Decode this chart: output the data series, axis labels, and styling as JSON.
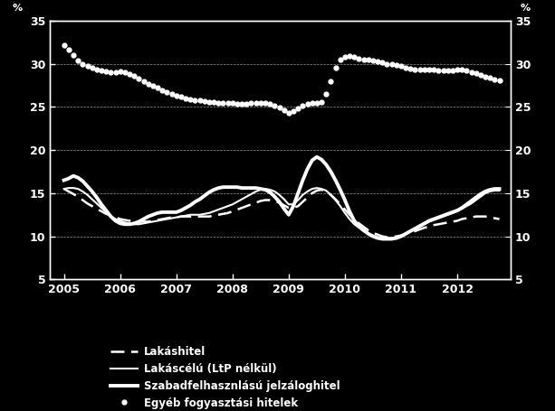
{
  "title": "",
  "ylabel_left": "%",
  "ylabel_right": "%",
  "ylim": [
    5,
    35
  ],
  "yticks": [
    5,
    10,
    15,
    20,
    25,
    30,
    35
  ],
  "xlim_start": 2004.75,
  "xlim_end": 2012.95,
  "xtick_years": [
    2005,
    2006,
    2007,
    2008,
    2009,
    2010,
    2011,
    2012
  ],
  "background_color": "#000000",
  "text_color": "#ffffff",
  "grid_color": "#888888",
  "legend_entries": [
    "Lakáshitel",
    "Lakáscélú (LtP nélkül)",
    "Szabadfelhasznlású jelzáloghitel",
    "Egyéb fogyasztási hitelek"
  ],
  "series": {
    "lakashitel": {
      "color": "#ffffff",
      "linestyle": "dashed",
      "linewidth": 1.8,
      "data_x": [
        2005.0,
        2005.083,
        2005.167,
        2005.25,
        2005.333,
        2005.417,
        2005.5,
        2005.583,
        2005.667,
        2005.75,
        2005.833,
        2005.917,
        2006.0,
        2006.083,
        2006.167,
        2006.25,
        2006.333,
        2006.417,
        2006.5,
        2006.583,
        2006.667,
        2006.75,
        2006.833,
        2006.917,
        2007.0,
        2007.083,
        2007.167,
        2007.25,
        2007.333,
        2007.417,
        2007.5,
        2007.583,
        2007.667,
        2007.75,
        2007.833,
        2007.917,
        2008.0,
        2008.083,
        2008.167,
        2008.25,
        2008.333,
        2008.417,
        2008.5,
        2008.583,
        2008.667,
        2008.75,
        2008.833,
        2008.917,
        2009.0,
        2009.083,
        2009.167,
        2009.25,
        2009.333,
        2009.417,
        2009.5,
        2009.583,
        2009.667,
        2009.75,
        2009.833,
        2009.917,
        2010.0,
        2010.083,
        2010.167,
        2010.25,
        2010.333,
        2010.417,
        2010.5,
        2010.583,
        2010.667,
        2010.75,
        2010.833,
        2010.917,
        2011.0,
        2011.083,
        2011.167,
        2011.25,
        2011.333,
        2011.417,
        2011.5,
        2011.583,
        2011.667,
        2011.75,
        2011.833,
        2011.917,
        2012.0,
        2012.083,
        2012.167,
        2012.25,
        2012.333,
        2012.417,
        2012.5,
        2012.583,
        2012.667,
        2012.75
      ],
      "data_y": [
        15.5,
        15.2,
        14.9,
        14.6,
        14.2,
        13.8,
        13.5,
        13.2,
        12.9,
        12.6,
        12.4,
        12.2,
        12.0,
        11.9,
        11.8,
        11.7,
        11.7,
        11.7,
        11.7,
        11.8,
        11.9,
        12.0,
        12.1,
        12.2,
        12.2,
        12.3,
        12.3,
        12.3,
        12.3,
        12.3,
        12.3,
        12.3,
        12.4,
        12.5,
        12.6,
        12.7,
        12.9,
        13.1,
        13.3,
        13.5,
        13.7,
        13.9,
        14.1,
        14.2,
        14.2,
        14.1,
        13.9,
        13.6,
        13.3,
        13.3,
        13.5,
        14.0,
        14.5,
        15.0,
        15.3,
        15.4,
        15.2,
        14.8,
        14.3,
        13.7,
        13.1,
        12.5,
        12.0,
        11.5,
        11.1,
        10.7,
        10.4,
        10.2,
        10.0,
        9.9,
        9.9,
        10.0,
        10.1,
        10.3,
        10.5,
        10.6,
        10.8,
        11.0,
        11.1,
        11.3,
        11.4,
        11.5,
        11.6,
        11.7,
        11.8,
        12.0,
        12.1,
        12.2,
        12.3,
        12.3,
        12.3,
        12.2,
        12.1,
        12.0
      ]
    },
    "lakascelú": {
      "color": "#ffffff",
      "linestyle": "solid",
      "linewidth": 1.5,
      "data_x": [
        2005.0,
        2005.083,
        2005.167,
        2005.25,
        2005.333,
        2005.417,
        2005.5,
        2005.583,
        2005.667,
        2005.75,
        2005.833,
        2005.917,
        2006.0,
        2006.083,
        2006.167,
        2006.25,
        2006.333,
        2006.417,
        2006.5,
        2006.583,
        2006.667,
        2006.75,
        2006.833,
        2006.917,
        2007.0,
        2007.083,
        2007.167,
        2007.25,
        2007.333,
        2007.417,
        2007.5,
        2007.583,
        2007.667,
        2007.75,
        2007.833,
        2007.917,
        2008.0,
        2008.083,
        2008.167,
        2008.25,
        2008.333,
        2008.417,
        2008.5,
        2008.583,
        2008.667,
        2008.75,
        2008.833,
        2008.917,
        2009.0,
        2009.083,
        2009.167,
        2009.25,
        2009.333,
        2009.417,
        2009.5,
        2009.583,
        2009.667,
        2009.75,
        2009.833,
        2009.917,
        2010.0,
        2010.083,
        2010.167,
        2010.25,
        2010.333,
        2010.417,
        2010.5,
        2010.583,
        2010.667,
        2010.75,
        2010.833,
        2010.917,
        2011.0,
        2011.083,
        2011.167,
        2011.25,
        2011.333,
        2011.417,
        2011.5,
        2011.583,
        2011.667,
        2011.75,
        2011.833,
        2011.917,
        2012.0,
        2012.083,
        2012.167,
        2012.25,
        2012.333,
        2012.417,
        2012.5,
        2012.583,
        2012.667,
        2012.75
      ],
      "data_y": [
        15.5,
        15.6,
        15.6,
        15.5,
        15.2,
        14.8,
        14.3,
        13.8,
        13.3,
        12.8,
        12.3,
        12.0,
        11.8,
        11.6,
        11.5,
        11.4,
        11.4,
        11.5,
        11.6,
        11.7,
        11.8,
        11.9,
        12.0,
        12.1,
        12.2,
        12.3,
        12.4,
        12.5,
        12.5,
        12.5,
        12.6,
        12.7,
        12.9,
        13.1,
        13.3,
        13.5,
        13.7,
        14.0,
        14.3,
        14.6,
        14.9,
        15.2,
        15.4,
        15.5,
        15.4,
        15.2,
        14.8,
        14.3,
        13.7,
        13.7,
        14.2,
        14.8,
        15.2,
        15.5,
        15.6,
        15.5,
        15.3,
        14.8,
        14.2,
        13.5,
        12.7,
        12.0,
        11.4,
        11.0,
        10.6,
        10.3,
        10.1,
        9.9,
        9.8,
        9.8,
        9.8,
        9.9,
        10.1,
        10.3,
        10.6,
        10.8,
        11.1,
        11.4,
        11.7,
        11.9,
        12.1,
        12.3,
        12.5,
        12.7,
        12.9,
        13.2,
        13.5,
        13.8,
        14.2,
        14.6,
        15.0,
        15.2,
        15.3,
        15.3
      ]
    },
    "szabadfelhasznalas": {
      "color": "#ffffff",
      "linestyle": "solid",
      "linewidth": 2.8,
      "data_x": [
        2005.0,
        2005.083,
        2005.167,
        2005.25,
        2005.333,
        2005.417,
        2005.5,
        2005.583,
        2005.667,
        2005.75,
        2005.833,
        2005.917,
        2006.0,
        2006.083,
        2006.167,
        2006.25,
        2006.333,
        2006.417,
        2006.5,
        2006.583,
        2006.667,
        2006.75,
        2006.833,
        2006.917,
        2007.0,
        2007.083,
        2007.167,
        2007.25,
        2007.333,
        2007.417,
        2007.5,
        2007.583,
        2007.667,
        2007.75,
        2007.833,
        2007.917,
        2008.0,
        2008.083,
        2008.167,
        2008.25,
        2008.333,
        2008.417,
        2008.5,
        2008.583,
        2008.667,
        2008.75,
        2008.833,
        2008.917,
        2009.0,
        2009.083,
        2009.167,
        2009.25,
        2009.333,
        2009.417,
        2009.5,
        2009.583,
        2009.667,
        2009.75,
        2009.833,
        2009.917,
        2010.0,
        2010.083,
        2010.167,
        2010.25,
        2010.333,
        2010.417,
        2010.5,
        2010.583,
        2010.667,
        2010.75,
        2010.833,
        2010.917,
        2011.0,
        2011.083,
        2011.167,
        2011.25,
        2011.333,
        2011.417,
        2011.5,
        2011.583,
        2011.667,
        2011.75,
        2011.833,
        2011.917,
        2012.0,
        2012.083,
        2012.167,
        2012.25,
        2012.333,
        2012.417,
        2012.5,
        2012.583,
        2012.667,
        2012.75
      ],
      "data_y": [
        16.5,
        16.7,
        17.0,
        16.8,
        16.4,
        15.8,
        15.2,
        14.5,
        13.7,
        13.0,
        12.3,
        11.8,
        11.5,
        11.4,
        11.4,
        11.5,
        11.7,
        12.0,
        12.3,
        12.5,
        12.7,
        12.8,
        12.8,
        12.8,
        12.8,
        13.0,
        13.3,
        13.6,
        14.0,
        14.3,
        14.7,
        15.1,
        15.4,
        15.6,
        15.7,
        15.7,
        15.7,
        15.7,
        15.6,
        15.6,
        15.6,
        15.6,
        15.5,
        15.4,
        15.1,
        14.6,
        14.0,
        13.2,
        12.5,
        13.5,
        15.0,
        16.5,
        17.8,
        18.8,
        19.2,
        18.9,
        18.3,
        17.5,
        16.5,
        15.4,
        14.2,
        12.9,
        11.8,
        11.2,
        10.7,
        10.3,
        10.0,
        9.8,
        9.7,
        9.7,
        9.7,
        9.8,
        10.0,
        10.3,
        10.6,
        10.9,
        11.2,
        11.5,
        11.8,
        12.0,
        12.2,
        12.4,
        12.6,
        12.8,
        13.0,
        13.3,
        13.7,
        14.1,
        14.5,
        14.9,
        15.2,
        15.4,
        15.5,
        15.5
      ]
    },
    "egyeb": {
      "color": "#ffffff",
      "linestyle": "dotted",
      "linewidth": 2.5,
      "dotsize": 4,
      "data_x": [
        2005.0,
        2005.083,
        2005.167,
        2005.25,
        2005.333,
        2005.417,
        2005.5,
        2005.583,
        2005.667,
        2005.75,
        2005.833,
        2005.917,
        2006.0,
        2006.083,
        2006.167,
        2006.25,
        2006.333,
        2006.417,
        2006.5,
        2006.583,
        2006.667,
        2006.75,
        2006.833,
        2006.917,
        2007.0,
        2007.083,
        2007.167,
        2007.25,
        2007.333,
        2007.417,
        2007.5,
        2007.583,
        2007.667,
        2007.75,
        2007.833,
        2007.917,
        2008.0,
        2008.083,
        2008.167,
        2008.25,
        2008.333,
        2008.417,
        2008.5,
        2008.583,
        2008.667,
        2008.75,
        2008.833,
        2008.917,
        2009.0,
        2009.083,
        2009.167,
        2009.25,
        2009.333,
        2009.417,
        2009.5,
        2009.583,
        2009.667,
        2009.75,
        2009.833,
        2009.917,
        2010.0,
        2010.083,
        2010.167,
        2010.25,
        2010.333,
        2010.417,
        2010.5,
        2010.583,
        2010.667,
        2010.75,
        2010.833,
        2010.917,
        2011.0,
        2011.083,
        2011.167,
        2011.25,
        2011.333,
        2011.417,
        2011.5,
        2011.583,
        2011.667,
        2011.75,
        2011.833,
        2011.917,
        2012.0,
        2012.083,
        2012.167,
        2012.25,
        2012.333,
        2012.417,
        2012.5,
        2012.583,
        2012.667,
        2012.75
      ],
      "data_y": [
        32.2,
        31.6,
        31.0,
        30.4,
        30.0,
        29.7,
        29.5,
        29.3,
        29.2,
        29.1,
        29.0,
        29.0,
        29.1,
        29.0,
        28.8,
        28.6,
        28.3,
        28.0,
        27.7,
        27.4,
        27.2,
        26.9,
        26.7,
        26.5,
        26.3,
        26.2,
        26.0,
        25.9,
        25.8,
        25.8,
        25.7,
        25.6,
        25.6,
        25.5,
        25.5,
        25.4,
        25.4,
        25.3,
        25.3,
        25.3,
        25.4,
        25.5,
        25.5,
        25.4,
        25.3,
        25.1,
        24.9,
        24.6,
        24.3,
        24.5,
        24.8,
        25.1,
        25.3,
        25.4,
        25.5,
        25.6,
        26.5,
        28.0,
        29.5,
        30.5,
        30.8,
        30.9,
        30.8,
        30.6,
        30.5,
        30.5,
        30.4,
        30.3,
        30.2,
        30.0,
        29.9,
        29.8,
        29.7,
        29.5,
        29.4,
        29.3,
        29.3,
        29.3,
        29.3,
        29.3,
        29.2,
        29.2,
        29.2,
        29.2,
        29.3,
        29.3,
        29.2,
        29.0,
        28.9,
        28.7,
        28.5,
        28.4,
        28.2,
        28.1
      ]
    }
  }
}
